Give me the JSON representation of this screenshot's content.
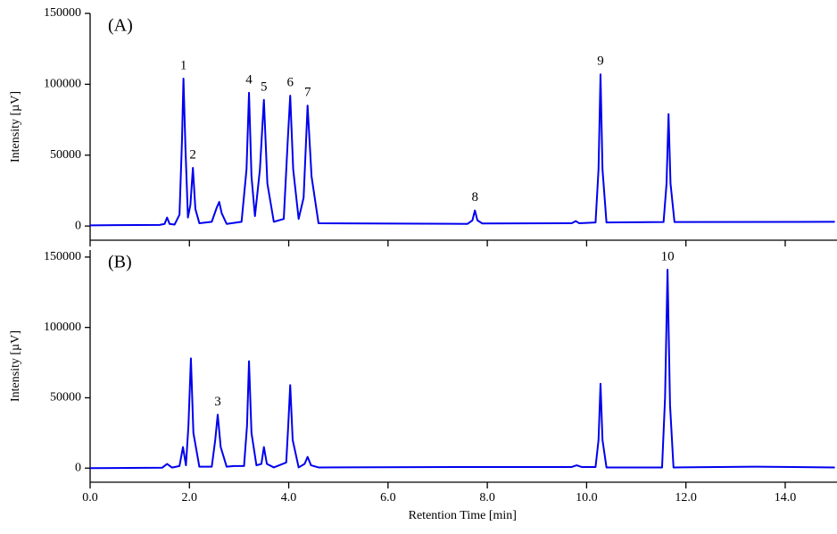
{
  "chart_data": [
    {
      "type": "line",
      "title": "(A)",
      "ylabel": "Intensity [µV]",
      "color": "#0000ee",
      "xlim": [
        0,
        15
      ],
      "ylim": [
        -10000,
        150000
      ],
      "yticks": [
        0,
        50000,
        100000,
        150000
      ],
      "x": [
        0,
        1.4,
        1.5,
        1.55,
        1.6,
        1.7,
        1.8,
        1.85,
        1.88,
        1.92,
        1.97,
        2.02,
        2.07,
        2.12,
        2.2,
        2.45,
        2.55,
        2.6,
        2.65,
        2.75,
        3.05,
        3.15,
        3.2,
        3.25,
        3.32,
        3.42,
        3.5,
        3.57,
        3.7,
        3.9,
        3.98,
        4.03,
        4.09,
        4.2,
        4.3,
        4.38,
        4.46,
        4.6,
        7.6,
        7.7,
        7.75,
        7.8,
        7.9,
        9.7,
        9.78,
        9.85,
        10.18,
        10.24,
        10.28,
        10.32,
        10.4,
        11.55,
        11.61,
        11.65,
        11.69,
        11.77,
        15
      ],
      "values": [
        500,
        800,
        1500,
        6000,
        1500,
        1000,
        8000,
        60000,
        104000,
        55000,
        6000,
        15000,
        41000,
        12000,
        2000,
        3000,
        13000,
        17000,
        9000,
        1500,
        3000,
        40000,
        94000,
        35000,
        7000,
        40000,
        89000,
        30000,
        3000,
        5000,
        60000,
        92000,
        40000,
        5000,
        20000,
        85000,
        35000,
        2000,
        1500,
        4000,
        11000,
        4000,
        1800,
        2000,
        3500,
        2000,
        2500,
        40000,
        107000,
        40000,
        2500,
        2800,
        30000,
        79000,
        30000,
        2800,
        3000
      ],
      "annotations": [
        {
          "label": "1",
          "x": 1.88,
          "y": 104000
        },
        {
          "label": "2",
          "x": 2.07,
          "y": 41000
        },
        {
          "label": "4",
          "x": 3.2,
          "y": 94000
        },
        {
          "label": "5",
          "x": 3.5,
          "y": 89000
        },
        {
          "label": "6",
          "x": 4.03,
          "y": 92000
        },
        {
          "label": "7",
          "x": 4.38,
          "y": 85000
        },
        {
          "label": "8",
          "x": 7.75,
          "y": 11000
        },
        {
          "label": "9",
          "x": 10.28,
          "y": 107000
        }
      ]
    },
    {
      "type": "line",
      "title": "(B)",
      "ylabel": "Intensity [µV]",
      "xlabel": "Retention Time [min]",
      "color": "#0000ee",
      "xlim": [
        0,
        15
      ],
      "ylim": [
        -10000,
        155000
      ],
      "yticks": [
        0,
        50000,
        100000,
        150000
      ],
      "xticks": [
        {
          "value": 0,
          "label": "0.0"
        },
        {
          "value": 2,
          "label": "2.0"
        },
        {
          "value": 4,
          "label": "4.0"
        },
        {
          "value": 6,
          "label": "6.0"
        },
        {
          "value": 8,
          "label": "8.0"
        },
        {
          "value": 10,
          "label": "10.0"
        },
        {
          "value": 12,
          "label": "12.0"
        },
        {
          "value": 14,
          "label": "14.0"
        }
      ],
      "x": [
        0,
        1.45,
        1.55,
        1.65,
        1.8,
        1.87,
        1.93,
        1.98,
        2.03,
        2.08,
        2.2,
        2.45,
        2.52,
        2.57,
        2.63,
        2.75,
        2.9,
        3.1,
        3.16,
        3.2,
        3.25,
        3.35,
        3.45,
        3.5,
        3.56,
        3.7,
        3.95,
        3.99,
        4.03,
        4.08,
        4.2,
        4.32,
        4.38,
        4.45,
        4.6,
        7.75,
        9.7,
        9.8,
        9.9,
        10.18,
        10.24,
        10.28,
        10.32,
        10.4,
        11.52,
        11.58,
        11.63,
        11.68,
        11.75,
        13.4,
        15
      ],
      "values": [
        0,
        300,
        3000,
        400,
        1500,
        15000,
        2000,
        30000,
        78000,
        25000,
        1000,
        1000,
        20000,
        38000,
        15000,
        1000,
        1500,
        1500,
        30000,
        76000,
        25000,
        2000,
        3000,
        15000,
        3000,
        500,
        4000,
        30000,
        59000,
        20000,
        500,
        3000,
        8000,
        2000,
        500,
        800,
        800,
        2000,
        800,
        800,
        20000,
        60000,
        20000,
        500,
        500,
        50000,
        141000,
        45000,
        500,
        1000,
        500
      ],
      "annotations": [
        {
          "label": "3",
          "x": 2.57,
          "y": 38000
        },
        {
          "label": "10",
          "x": 11.63,
          "y": 141000
        }
      ]
    }
  ]
}
